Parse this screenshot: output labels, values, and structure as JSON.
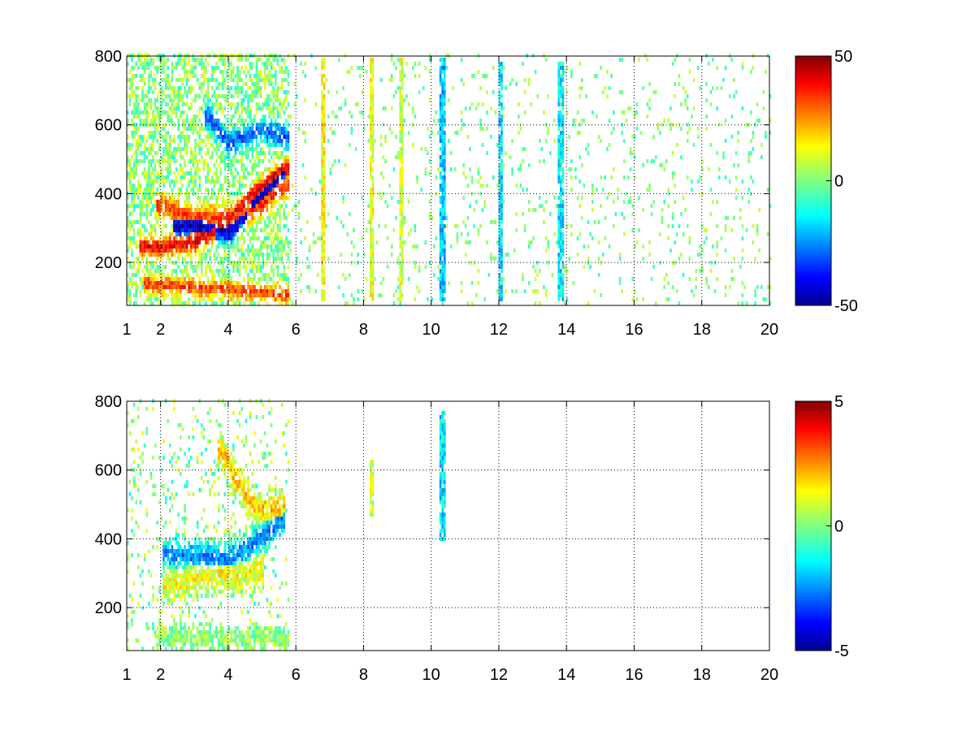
{
  "chart_data": [
    {
      "type": "heatmap",
      "title": "",
      "xlabel": "",
      "ylabel": "",
      "x_ticks": [
        1,
        2,
        4,
        6,
        8,
        10,
        12,
        14,
        16,
        18,
        20
      ],
      "y_ticks": [
        200,
        400,
        600,
        800
      ],
      "xlim": [
        1,
        20
      ],
      "ylim": [
        75,
        800
      ],
      "grid": true,
      "colormap": "jet",
      "clim": [
        -50,
        50
      ],
      "colorbar_ticks": [
        -50,
        0,
        50
      ],
      "features": [
        {
          "kind": "band",
          "x": [
            1.5,
            2.2,
            3,
            3.8,
            4.8,
            5.7
          ],
          "y": [
            240,
            240,
            255,
            300,
            400,
            470
          ],
          "value": 40,
          "width": 22
        },
        {
          "kind": "band",
          "x": [
            2.5,
            3.2,
            4,
            4.8,
            5.6
          ],
          "y": [
            300,
            300,
            280,
            370,
            460
          ],
          "value": -45,
          "width": 22
        },
        {
          "kind": "band",
          "x": [
            1.6,
            2.3,
            3.2,
            4,
            4.8,
            5.7
          ],
          "y": [
            130,
            125,
            120,
            115,
            108,
            100
          ],
          "value": 30,
          "width": 20
        },
        {
          "kind": "band",
          "x": [
            3.4,
            4.0,
            5.0,
            5.7
          ],
          "y": [
            620,
            540,
            580,
            560
          ],
          "value": -28,
          "width": 25
        },
        {
          "kind": "band",
          "x": [
            2.0,
            2.8,
            3.8,
            4.8,
            5.7
          ],
          "y": [
            360,
            330,
            320,
            350,
            420
          ],
          "value": 32,
          "width": 26
        },
        {
          "kind": "vline",
          "x": 10.3,
          "y": [
            80,
            790
          ],
          "value": -18
        },
        {
          "kind": "vline",
          "x": 12.0,
          "y": [
            80,
            780
          ],
          "value": -16
        },
        {
          "kind": "vline",
          "x": 13.8,
          "y": [
            80,
            780
          ],
          "value": -14
        },
        {
          "kind": "vline",
          "x": 8.2,
          "y": [
            80,
            790
          ],
          "value": 10
        },
        {
          "kind": "vline",
          "x": 9.1,
          "y": [
            80,
            790
          ],
          "value": 8
        },
        {
          "kind": "vline",
          "x": 6.8,
          "y": [
            80,
            790
          ],
          "value": 12
        }
      ]
    },
    {
      "type": "heatmap",
      "title": "",
      "xlabel": "",
      "ylabel": "",
      "x_ticks": [
        1,
        2,
        4,
        6,
        8,
        10,
        12,
        14,
        16,
        18,
        20
      ],
      "y_ticks": [
        200,
        400,
        600,
        800
      ],
      "xlim": [
        1,
        20
      ],
      "ylim": [
        75,
        800
      ],
      "grid": true,
      "colormap": "jet",
      "clim": [
        -5,
        5
      ],
      "colorbar_ticks": [
        -5,
        0,
        5
      ],
      "features": [
        {
          "kind": "band",
          "x": [
            2.2,
            3.0,
            3.8,
            4.6,
            5.6
          ],
          "y": [
            350,
            345,
            335,
            370,
            450
          ],
          "value": -2.5,
          "width": 28
        },
        {
          "kind": "band",
          "x": [
            2.0,
            3.0,
            4.0,
            5.0,
            5.7
          ],
          "y": [
            110,
            108,
            106,
            104,
            100
          ],
          "value": 0.2,
          "width": 18
        },
        {
          "kind": "band",
          "x": [
            3.8,
            4.2,
            4.8,
            5.6
          ],
          "y": [
            650,
            560,
            480,
            480
          ],
          "value": 1.8,
          "width": 28
        },
        {
          "kind": "band",
          "x": [
            2.2,
            3.0,
            4.0,
            5.0
          ],
          "y": [
            260,
            280,
            290,
            300
          ],
          "value": 1.2,
          "width": 30
        },
        {
          "kind": "vline",
          "x": 10.3,
          "y": [
            390,
            760
          ],
          "value": -1.5
        },
        {
          "kind": "vline",
          "x": 8.2,
          "y": [
            460,
            620
          ],
          "value": 0.8
        }
      ]
    }
  ]
}
